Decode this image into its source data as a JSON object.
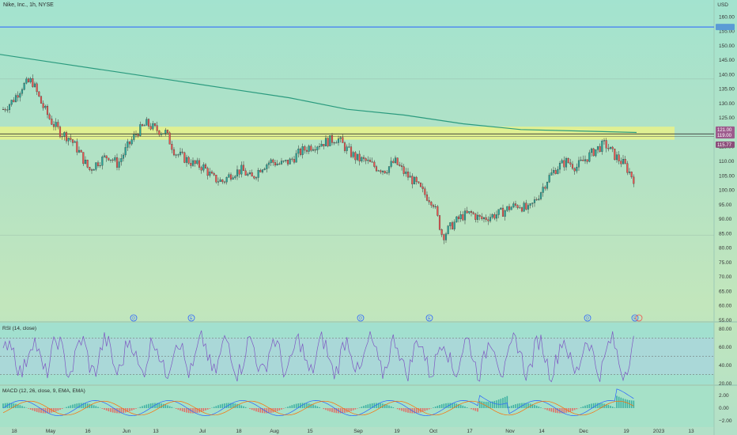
{
  "header": {
    "title": "Nike, Inc., 1h, NYSE",
    "currency": "USD"
  },
  "price_axis": {
    "ticks": [
      "160.00",
      "155.00",
      "150.00",
      "145.00",
      "140.00",
      "135.00",
      "130.00",
      "125.00",
      "120.00",
      "115.00",
      "110.00",
      "105.00",
      "100.00",
      "95.00",
      "90.00",
      "85.00",
      "80.00",
      "75.00",
      "70.00",
      "65.00",
      "60.00",
      "55.00"
    ],
    "last_price_tag": "115.77",
    "level_tag_1": "121.00",
    "level_tag_2": "119.00"
  },
  "rsi": {
    "label": "RSI (14, close)",
    "ticks": [
      "80.00",
      "60.00",
      "40.00",
      "20.00"
    ],
    "overbought": 70,
    "oversold": 30
  },
  "macd": {
    "label": "MACD (12, 26, close, 9, EMA, EMA)",
    "ticks": [
      "2.00",
      "0.00",
      "−2.00"
    ]
  },
  "time_axis": [
    "18",
    "May",
    "16",
    "Jun",
    "13",
    "Jul",
    "18",
    "Aug",
    "15",
    "Sep",
    "19",
    "Oct",
    "17",
    "Nov",
    "14",
    "Dec",
    "19",
    "2023",
    "13"
  ],
  "event_markers": [
    "D",
    "E",
    "D",
    "E",
    "D",
    "E"
  ],
  "colors": {
    "up": "#26a69a",
    "down": "#ef5350",
    "ma_line": "#2a9a7e",
    "blue_line": "#2962ff",
    "zone": "#e6f28c",
    "rsi_line": "#7e57c2",
    "macd_line": "#2962ff",
    "signal_line": "#ff6d00"
  },
  "chart_data": {
    "type": "candlestick",
    "title": "Nike, Inc., 1h, NYSE",
    "ylim": [
      55,
      162
    ],
    "x": [
      "18",
      "May",
      "16",
      "Jun",
      "13",
      "Jul",
      "18",
      "Aug",
      "15",
      "Sep",
      "19",
      "Oct",
      "17",
      "Nov",
      "14",
      "Dec",
      "19",
      "2023",
      "13"
    ],
    "close_path": [
      128,
      131,
      136,
      138,
      130,
      124,
      120,
      118,
      113,
      107,
      110,
      112,
      109,
      115,
      120,
      123,
      121,
      120,
      113,
      111,
      109,
      108,
      104,
      103,
      106,
      107,
      104,
      108,
      110,
      109,
      110,
      113,
      115,
      116,
      117,
      118,
      114,
      111,
      110,
      108,
      107,
      110,
      106,
      103,
      99,
      96,
      84,
      88,
      91,
      92,
      90,
      91,
      92,
      94,
      95,
      93,
      98,
      104,
      108,
      110,
      108,
      111,
      114,
      116,
      112,
      109,
      104
    ],
    "resistance_level": 156.5,
    "support_zone": [
      117.5,
      122
    ],
    "ma_series": [
      147,
      144,
      141,
      138,
      135,
      132,
      128,
      126,
      123,
      121,
      120.5,
      120
    ],
    "rsi_range": [
      20,
      85
    ],
    "macd_range": [
      -3,
      3
    ]
  }
}
